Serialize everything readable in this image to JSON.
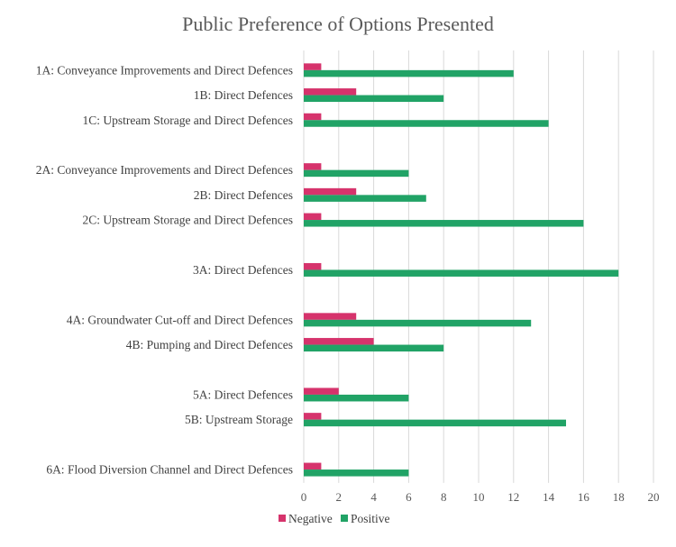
{
  "chart_data": {
    "type": "bar",
    "orientation": "horizontal",
    "title": "Public Preference of Options Presented",
    "xlabel": "",
    "ylabel": "",
    "xlim": [
      0,
      20
    ],
    "x_ticks": [
      0,
      2,
      4,
      6,
      8,
      10,
      12,
      14,
      16,
      18,
      20
    ],
    "grid": true,
    "legend_position": "bottom",
    "categories": [
      "1A: Conveyance Improvements and Direct Defences",
      "1B: Direct Defences",
      "1C: Upstream Storage and Direct Defences",
      "",
      "2A: Conveyance Improvements and Direct Defences",
      "2B: Direct Defences",
      "2C: Upstream Storage and Direct Defences",
      "",
      "3A: Direct Defences",
      "",
      "4A: Groundwater Cut-off and Direct Defences",
      "4B: Pumping and Direct Defences",
      "",
      "5A: Direct Defences",
      "5B: Upstream Storage",
      "",
      "6A: Flood Diversion Channel and Direct Defences"
    ],
    "series": [
      {
        "name": "Negative",
        "color": "#D6336C",
        "values": [
          1,
          3,
          1,
          null,
          1,
          3,
          1,
          null,
          1,
          null,
          3,
          4,
          null,
          2,
          1,
          null,
          1
        ]
      },
      {
        "name": "Positive",
        "color": "#21A366",
        "values": [
          12,
          8,
          14,
          null,
          6,
          7,
          16,
          null,
          18,
          null,
          13,
          8,
          null,
          6,
          15,
          null,
          6
        ]
      }
    ]
  }
}
